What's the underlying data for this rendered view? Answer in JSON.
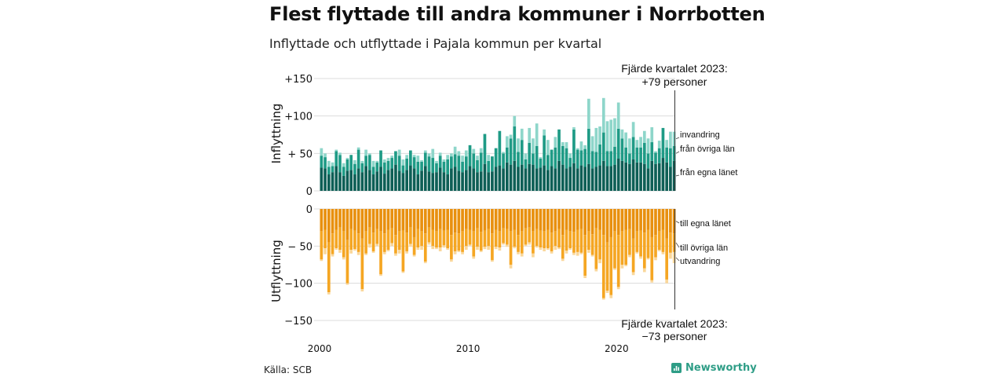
{
  "title": "Flest flyttade till andra kommuner i Norrbotten",
  "subtitle": "Inflyttade och utflyttade i Pajala kommun per kvartal",
  "source": "Källa: SCB",
  "logo": "Newsworthy",
  "colors": {
    "in_egna": "#0e5f56",
    "in_ovriga": "#1f9b86",
    "in_invandring": "#8ed6ca",
    "out_egna": "#e8900f",
    "out_ovriga": "#f5a623",
    "out_utvandring": "#fad79a"
  },
  "chart_data": [
    {
      "type": "bar",
      "stacked": true,
      "ylabel": "Inflyttning",
      "ylim": [
        0,
        150
      ],
      "yticks": [
        0,
        50,
        100,
        150
      ],
      "ytick_labels": [
        "0",
        "+ 50",
        "+100",
        "+150"
      ],
      "x_period": "quarter",
      "x_start": "2000 Q1",
      "x_end": "2023 Q4",
      "xticks": [
        "2000",
        "2010",
        "2020"
      ],
      "annotation": {
        "line1": "Fjärde kvartalet 2023:",
        "line2": "+79 personer"
      },
      "series": [
        {
          "name": "från egna länet",
          "values": [
            31,
            30,
            22,
            25,
            33,
            25,
            20,
            27,
            28,
            22,
            30,
            25,
            33,
            28,
            22,
            26,
            32,
            23,
            28,
            30,
            35,
            27,
            24,
            28,
            34,
            30,
            22,
            27,
            33,
            26,
            24,
            25,
            31,
            25,
            22,
            30,
            32,
            27,
            25,
            28,
            33,
            30,
            25,
            26,
            36,
            25,
            26,
            32,
            34,
            30,
            38,
            35,
            40,
            32,
            35,
            30,
            36,
            35,
            30,
            31,
            34,
            28,
            33,
            30,
            40,
            35,
            30,
            32,
            37,
            30,
            34,
            32,
            36,
            30,
            32,
            34,
            40,
            33,
            33,
            35,
            43,
            40,
            38,
            36,
            42,
            38,
            38,
            36,
            30,
            40,
            36,
            37,
            44,
            38,
            32,
            40
          ]
        },
        {
          "name": "från övriga län",
          "values": [
            16,
            15,
            10,
            8,
            20,
            23,
            12,
            15,
            20,
            14,
            25,
            12,
            14,
            20,
            10,
            12,
            22,
            15,
            12,
            14,
            18,
            20,
            10,
            15,
            20,
            15,
            17,
            12,
            18,
            20,
            20,
            12,
            16,
            14,
            20,
            16,
            17,
            20,
            14,
            18,
            28,
            20,
            16,
            25,
            40,
            15,
            20,
            25,
            46,
            20,
            20,
            35,
            46,
            20,
            33,
            12,
            28,
            15,
            30,
            12,
            40,
            20,
            22,
            28,
            42,
            25,
            27,
            12,
            45,
            25,
            20,
            24,
            47,
            23,
            20,
            28,
            38,
            20,
            20,
            24,
            40,
            30,
            20,
            14,
            30,
            20,
            20,
            28,
            20,
            25,
            15,
            20,
            40,
            20,
            25,
            20
          ]
        },
        {
          "name": "invandring",
          "values": [
            10,
            5,
            8,
            5,
            2,
            3,
            5,
            2,
            0,
            5,
            3,
            3,
            8,
            2,
            8,
            2,
            0,
            4,
            4,
            3,
            0,
            8,
            8,
            5,
            0,
            3,
            8,
            2,
            3,
            4,
            12,
            3,
            4,
            3,
            6,
            4,
            10,
            6,
            8,
            8,
            0,
            6,
            6,
            6,
            0,
            8,
            0,
            0,
            0,
            2,
            15,
            5,
            14,
            18,
            15,
            8,
            20,
            20,
            30,
            2,
            8,
            20,
            0,
            14,
            0,
            5,
            8,
            6,
            3,
            2,
            12,
            5,
            40,
            20,
            32,
            24,
            46,
            40,
            42,
            38,
            35,
            12,
            20,
            20,
            20,
            10,
            14,
            16,
            20,
            20,
            2,
            10,
            0,
            10,
            22,
            19
          ]
        }
      ]
    },
    {
      "type": "bar",
      "stacked": true,
      "ylabel": "Utflyttning",
      "ylim": [
        -150,
        0
      ],
      "yticks": [
        0,
        -50,
        -100,
        -150
      ],
      "ytick_labels": [
        "0",
        "− 50",
        "−100",
        "−150"
      ],
      "x_period": "quarter",
      "x_start": "2000 Q1",
      "x_end": "2023 Q4",
      "annotation": {
        "line1": "Fjärde kvartalet 2023:",
        "line2": "−73 personer"
      },
      "series": [
        {
          "name": "till egna länet",
          "values": [
            -30,
            -28,
            -45,
            -33,
            -28,
            -25,
            -30,
            -42,
            -27,
            -29,
            -33,
            -40,
            -30,
            -25,
            -32,
            -27,
            -30,
            -33,
            -28,
            -26,
            -35,
            -30,
            -29,
            -32,
            -25,
            -38,
            -27,
            -30,
            -33,
            -25,
            -28,
            -30,
            -27,
            -29,
            -28,
            -35,
            -32,
            -33,
            -30,
            -27,
            -28,
            -30,
            -26,
            -31,
            -29,
            -27,
            -33,
            -28,
            -30,
            -26,
            -27,
            -30,
            -28,
            -35,
            -30,
            -26,
            -25,
            -30,
            -27,
            -29,
            -30,
            -28,
            -32,
            -30,
            -27,
            -35,
            -28,
            -30,
            -31,
            -28,
            -27,
            -35,
            -30,
            -34,
            -26,
            -28,
            -35,
            -45,
            -38,
            -30,
            -35,
            -30,
            -28,
            -27,
            -40,
            -30,
            -29,
            -32,
            -28,
            -38,
            -35,
            -30,
            -28,
            -40,
            -32,
            -33
          ]
        },
        {
          "name": "till övriga län",
          "values": [
            -38,
            -25,
            -67,
            -28,
            -25,
            -30,
            -35,
            -58,
            -28,
            -25,
            -25,
            -68,
            -30,
            -22,
            -25,
            -20,
            -58,
            -25,
            -27,
            -20,
            -25,
            -25,
            -55,
            -25,
            -22,
            -24,
            -25,
            -20,
            -38,
            -20,
            -22,
            -22,
            -25,
            -20,
            -25,
            -33,
            -25,
            -23,
            -28,
            -23,
            -20,
            -34,
            -25,
            -25,
            -22,
            -23,
            -36,
            -23,
            -22,
            -20,
            -21,
            -45,
            -23,
            -23,
            -30,
            -22,
            -20,
            -30,
            -23,
            -23,
            -23,
            -25,
            -25,
            -20,
            -25,
            -32,
            -28,
            -23,
            -28,
            -30,
            -32,
            -55,
            -25,
            -28,
            -55,
            -40,
            -85,
            -65,
            -78,
            -50,
            -70,
            -45,
            -47,
            -35,
            -45,
            -28,
            -35,
            -48,
            -38,
            -58,
            -30,
            -25,
            -30,
            -55,
            -27,
            -25
          ]
        },
        {
          "name": "utvandring",
          "values": [
            -2,
            -8,
            -3,
            -3,
            -2,
            -4,
            -3,
            -2,
            -5,
            -2,
            -4,
            -3,
            -2,
            -5,
            -2,
            -3,
            -2,
            -3,
            -2,
            -4,
            -3,
            -5,
            -2,
            -3,
            -4,
            -2,
            -3,
            -5,
            -2,
            -3,
            -4,
            -2,
            -5,
            -3,
            -2,
            -3,
            -4,
            -2,
            -3,
            -5,
            -2,
            -3,
            -4,
            -2,
            -3,
            -5,
            -2,
            -3,
            -4,
            -2,
            -3,
            -5,
            -2,
            -3,
            -4,
            -2,
            -3,
            -5,
            -2,
            -3,
            -4,
            -2,
            -3,
            -5,
            -2,
            -3,
            -4,
            -2,
            -3,
            -5,
            -2,
            -3,
            -4,
            -2,
            -3,
            -5,
            -2,
            -3,
            -4,
            -2,
            -3,
            -5,
            -2,
            -3,
            -4,
            -2,
            -3,
            -5,
            -2,
            -3,
            -4,
            -2,
            -3,
            -5,
            -8,
            -15
          ]
        }
      ]
    }
  ]
}
